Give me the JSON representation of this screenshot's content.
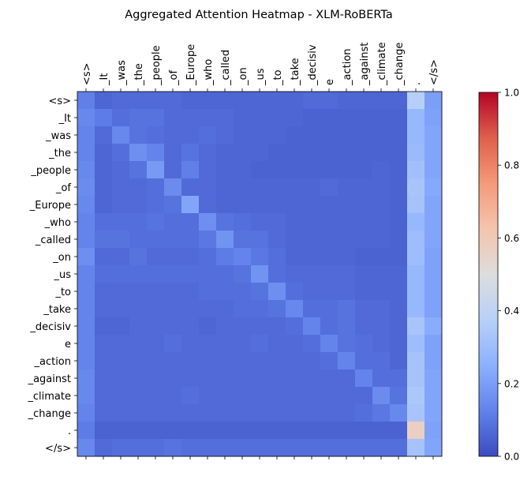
{
  "chart_data": {
    "type": "heatmap",
    "title": "Aggregated Attention Heatmap - XLM-RoBERTa",
    "xlabel": "",
    "ylabel": "",
    "x_tokens": [
      "<s>",
      "_It",
      "_was",
      "_the",
      "_people",
      "_of",
      "_Europe",
      "_who",
      "_called",
      "_on",
      "_us",
      "_to",
      "_take",
      "_decisiv",
      "e",
      "_action",
      "_against",
      "_climate",
      "_change",
      ".",
      "</s>"
    ],
    "y_tokens": [
      "<s>",
      "_It",
      "_was",
      "_the",
      "_people",
      "_of",
      "_Europe",
      "_who",
      "_called",
      "_on",
      "_us",
      "_to",
      "_take",
      "_decisiv",
      "e",
      "_action",
      "_against",
      "_climate",
      "_change",
      ".",
      "</s>"
    ],
    "colormap": "coolwarm",
    "vmin": 0.0,
    "vmax": 1.0,
    "colorbar_ticks": [
      "0.0",
      "0.2",
      "0.4",
      "0.6",
      "0.8",
      "1.0"
    ],
    "grid": false,
    "values": [
      [
        0.12,
        0.06,
        0.07,
        0.07,
        0.07,
        0.07,
        0.06,
        0.06,
        0.06,
        0.06,
        0.06,
        0.06,
        0.06,
        0.07,
        0.07,
        0.06,
        0.06,
        0.06,
        0.06,
        0.37,
        0.2
      ],
      [
        0.14,
        0.11,
        0.08,
        0.09,
        0.09,
        0.07,
        0.07,
        0.07,
        0.07,
        0.06,
        0.06,
        0.06,
        0.06,
        0.05,
        0.05,
        0.05,
        0.05,
        0.05,
        0.05,
        0.28,
        0.21
      ],
      [
        0.13,
        0.07,
        0.14,
        0.09,
        0.08,
        0.07,
        0.07,
        0.08,
        0.07,
        0.06,
        0.06,
        0.06,
        0.05,
        0.05,
        0.05,
        0.05,
        0.05,
        0.05,
        0.05,
        0.28,
        0.22
      ],
      [
        0.13,
        0.06,
        0.08,
        0.16,
        0.13,
        0.07,
        0.09,
        0.07,
        0.06,
        0.06,
        0.06,
        0.05,
        0.05,
        0.05,
        0.05,
        0.05,
        0.05,
        0.05,
        0.05,
        0.29,
        0.22
      ],
      [
        0.14,
        0.06,
        0.07,
        0.09,
        0.19,
        0.07,
        0.12,
        0.07,
        0.06,
        0.06,
        0.05,
        0.05,
        0.05,
        0.05,
        0.05,
        0.05,
        0.05,
        0.06,
        0.05,
        0.31,
        0.22
      ],
      [
        0.15,
        0.06,
        0.07,
        0.07,
        0.08,
        0.15,
        0.07,
        0.07,
        0.06,
        0.06,
        0.06,
        0.06,
        0.06,
        0.06,
        0.07,
        0.06,
        0.06,
        0.06,
        0.05,
        0.33,
        0.23
      ],
      [
        0.14,
        0.06,
        0.07,
        0.07,
        0.08,
        0.09,
        0.22,
        0.07,
        0.06,
        0.06,
        0.06,
        0.06,
        0.06,
        0.06,
        0.06,
        0.06,
        0.06,
        0.06,
        0.05,
        0.32,
        0.22
      ],
      [
        0.13,
        0.08,
        0.08,
        0.08,
        0.09,
        0.08,
        0.08,
        0.16,
        0.09,
        0.08,
        0.07,
        0.07,
        0.06,
        0.06,
        0.06,
        0.06,
        0.06,
        0.06,
        0.05,
        0.28,
        0.22
      ],
      [
        0.13,
        0.09,
        0.09,
        0.08,
        0.08,
        0.08,
        0.08,
        0.1,
        0.17,
        0.09,
        0.09,
        0.07,
        0.06,
        0.06,
        0.06,
        0.06,
        0.06,
        0.06,
        0.05,
        0.3,
        0.22
      ],
      [
        0.16,
        0.07,
        0.07,
        0.09,
        0.07,
        0.07,
        0.07,
        0.08,
        0.11,
        0.13,
        0.1,
        0.08,
        0.06,
        0.06,
        0.06,
        0.06,
        0.05,
        0.05,
        0.05,
        0.3,
        0.21
      ],
      [
        0.13,
        0.08,
        0.08,
        0.08,
        0.08,
        0.08,
        0.08,
        0.08,
        0.08,
        0.09,
        0.17,
        0.08,
        0.07,
        0.07,
        0.07,
        0.07,
        0.06,
        0.06,
        0.06,
        0.28,
        0.21
      ],
      [
        0.13,
        0.07,
        0.07,
        0.07,
        0.07,
        0.07,
        0.07,
        0.08,
        0.08,
        0.08,
        0.09,
        0.16,
        0.08,
        0.07,
        0.07,
        0.07,
        0.06,
        0.06,
        0.06,
        0.28,
        0.21
      ],
      [
        0.13,
        0.07,
        0.07,
        0.07,
        0.07,
        0.07,
        0.07,
        0.07,
        0.07,
        0.08,
        0.08,
        0.09,
        0.14,
        0.08,
        0.08,
        0.09,
        0.07,
        0.07,
        0.06,
        0.28,
        0.21
      ],
      [
        0.13,
        0.06,
        0.06,
        0.07,
        0.07,
        0.07,
        0.07,
        0.06,
        0.07,
        0.07,
        0.07,
        0.07,
        0.08,
        0.13,
        0.08,
        0.09,
        0.07,
        0.07,
        0.06,
        0.33,
        0.24
      ],
      [
        0.13,
        0.07,
        0.07,
        0.07,
        0.07,
        0.08,
        0.07,
        0.07,
        0.07,
        0.07,
        0.08,
        0.07,
        0.07,
        0.08,
        0.13,
        0.09,
        0.08,
        0.07,
        0.06,
        0.3,
        0.21
      ],
      [
        0.13,
        0.07,
        0.07,
        0.07,
        0.07,
        0.07,
        0.07,
        0.07,
        0.07,
        0.07,
        0.07,
        0.07,
        0.07,
        0.07,
        0.08,
        0.13,
        0.08,
        0.08,
        0.06,
        0.32,
        0.21
      ],
      [
        0.14,
        0.07,
        0.07,
        0.07,
        0.07,
        0.07,
        0.07,
        0.07,
        0.07,
        0.07,
        0.07,
        0.07,
        0.07,
        0.07,
        0.07,
        0.07,
        0.13,
        0.08,
        0.08,
        0.32,
        0.22
      ],
      [
        0.14,
        0.07,
        0.07,
        0.07,
        0.07,
        0.07,
        0.08,
        0.07,
        0.07,
        0.07,
        0.07,
        0.07,
        0.07,
        0.07,
        0.07,
        0.07,
        0.07,
        0.15,
        0.09,
        0.34,
        0.22
      ],
      [
        0.13,
        0.07,
        0.07,
        0.07,
        0.07,
        0.07,
        0.07,
        0.07,
        0.07,
        0.07,
        0.07,
        0.07,
        0.07,
        0.07,
        0.07,
        0.07,
        0.08,
        0.1,
        0.14,
        0.33,
        0.22
      ],
      [
        0.11,
        0.05,
        0.05,
        0.05,
        0.05,
        0.05,
        0.05,
        0.05,
        0.05,
        0.05,
        0.05,
        0.05,
        0.05,
        0.05,
        0.05,
        0.05,
        0.05,
        0.05,
        0.05,
        0.57,
        0.21
      ],
      [
        0.14,
        0.07,
        0.08,
        0.08,
        0.08,
        0.09,
        0.08,
        0.08,
        0.08,
        0.08,
        0.08,
        0.08,
        0.08,
        0.08,
        0.08,
        0.08,
        0.08,
        0.08,
        0.08,
        0.32,
        0.22
      ]
    ]
  }
}
